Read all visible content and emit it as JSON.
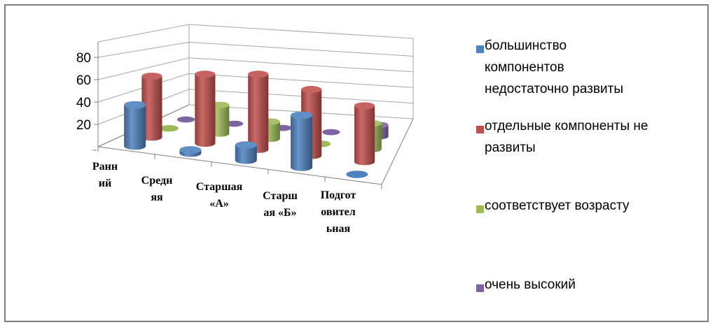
{
  "chart_data": {
    "type": "bar",
    "style": "3d-cylinder",
    "categories": [
      "Ранний",
      "Средняя",
      "Старшая «А»",
      "Старшая «Б»",
      "Подготовительная"
    ],
    "category_label_lines": [
      [
        "Ранн",
        "ий"
      ],
      [
        "Средн",
        "яя"
      ],
      [
        "Старшая",
        "«А»"
      ],
      [
        "Старш",
        "ая «Б»"
      ],
      [
        "Подгот",
        "овител",
        "ьная"
      ]
    ],
    "series": [
      {
        "name": "большинство компонентов недостаточно развиты",
        "color": "#4f81bd",
        "values": [
          38,
          3,
          14,
          48,
          0
        ]
      },
      {
        "name": "отдельные компоненты не развиты",
        "color": "#c0504d",
        "values": [
          60,
          68,
          74,
          65,
          55
        ]
      },
      {
        "name": "соответствует возрасту",
        "color": "#9bbb59",
        "values": [
          0,
          30,
          18,
          0,
          27
        ]
      },
      {
        "name": "очень высокий",
        "color": "#8064a2",
        "values": [
          0,
          0,
          0,
          0,
          13
        ]
      }
    ],
    "y_ticks": [
      "20",
      "40",
      "60",
      "80"
    ],
    "ylim": [
      0,
      80
    ],
    "grid": true,
    "legend_position": "right"
  },
  "legend": {
    "items": [
      {
        "label_lines": [
          "большинство",
          "компонентов",
          "недостаточно развиты"
        ],
        "color": "#4f81bd"
      },
      {
        "label_lines": [
          "отдельные компоненты не",
          "развиты"
        ],
        "color": "#c0504d"
      },
      {
        "label_lines": [
          "соответствует возрасту"
        ],
        "color": "#9bbb59"
      },
      {
        "label_lines": [
          "очень высокий"
        ],
        "color": "#8064a2"
      }
    ]
  }
}
